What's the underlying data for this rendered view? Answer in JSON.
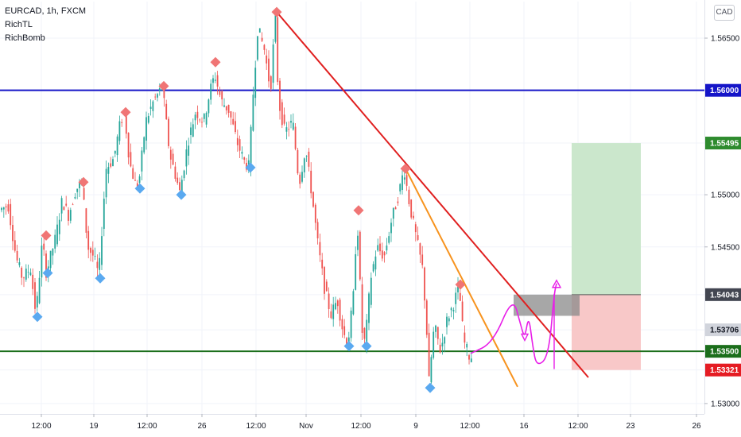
{
  "legend": {
    "symbol_line": "EURCAD, 1h, FXCM",
    "indicators": [
      "RichTL",
      "RichBomb"
    ]
  },
  "currency_badge": "CAD",
  "colors": {
    "up": "#26a69a",
    "down": "#ef5350",
    "resistance": "#1515c8",
    "support": "#1b6e1b",
    "trend_red": "#e01f1f",
    "trend_orange": "#f7931e",
    "path": "#e81ee8",
    "profit_zone": "#c8e6c9",
    "loss_zone": "#f8c5c5",
    "entry_box": "#8a8a8a",
    "marker_top": "#f07575",
    "marker_bottom": "#5aa9f0"
  },
  "chart_data": {
    "type": "candlestick",
    "symbol": "EURCAD",
    "timeframe": "1h",
    "source": "FXCM",
    "ylim": [
      1.529,
      1.5685
    ],
    "xlim": [
      0,
      930
    ],
    "price_ticks": [
      {
        "label": "1.56500",
        "value": 1.565
      },
      {
        "label": "1.55000",
        "value": 1.55
      },
      {
        "label": "1.54500",
        "value": 1.545
      },
      {
        "label": "1.53000",
        "value": 1.53
      }
    ],
    "price_labels": [
      {
        "label": "1.56000",
        "value": 1.56,
        "bg": "#1515c8",
        "fg": "#ffffff"
      },
      {
        "label": "1.55495",
        "value": 1.55495,
        "bg": "#2e8b2e",
        "fg": "#ffffff"
      },
      {
        "label": "1.54043",
        "value": 1.54043,
        "bg": "#434651",
        "fg": "#ffffff"
      },
      {
        "label": "1.53706",
        "value": 1.53706,
        "bg": "#d1d4dc",
        "fg": "#131722"
      },
      {
        "label": "1.53500",
        "value": 1.535,
        "bg": "#1b6e1b",
        "fg": "#ffffff"
      },
      {
        "label": "1.53321",
        "value": 1.53321,
        "bg": "#e51c23",
        "fg": "#ffffff"
      }
    ],
    "time_ticks": [
      {
        "label": "12:00",
        "x": 52
      },
      {
        "label": "19",
        "x": 118
      },
      {
        "label": "12:00",
        "x": 185
      },
      {
        "label": "26",
        "x": 254
      },
      {
        "label": "12:00",
        "x": 322
      },
      {
        "label": "Nov",
        "x": 385
      },
      {
        "label": "12:00",
        "x": 454
      },
      {
        "label": "9",
        "x": 523
      },
      {
        "label": "12:00",
        "x": 591
      },
      {
        "label": "16",
        "x": 659
      },
      {
        "label": "12:00",
        "x": 727
      },
      {
        "label": "23",
        "x": 793
      },
      {
        "label": "26",
        "x": 876
      }
    ],
    "horizontal_lines": [
      {
        "name": "resistance",
        "value": 1.56
      },
      {
        "name": "support",
        "value": 1.535
      }
    ],
    "trend_lines": [
      {
        "name": "main-downtrend",
        "points": [
          [
            348,
            1.5675
          ],
          [
            740,
            1.5325
          ]
        ]
      },
      {
        "name": "steep-downtrend",
        "points": [
          [
            510,
            1.5525
          ],
          [
            651,
            1.5316
          ]
        ]
      }
    ],
    "position": {
      "x_start": 719,
      "x_end": 806,
      "target": 1.55495,
      "entry": 1.54043,
      "stop": 1.53321,
      "box": {
        "x_start": 646,
        "x_end": 729,
        "top": 1.54043,
        "bottom": 1.5384
      }
    },
    "projected_path": [
      [
        592,
        1.5348
      ],
      [
        620,
        1.5358
      ],
      [
        645,
        1.5403
      ],
      [
        655,
        1.5375
      ],
      [
        660,
        1.5362
      ],
      [
        665,
        1.5385
      ],
      [
        670,
        1.5355
      ],
      [
        675,
        1.5335
      ],
      [
        690,
        1.5345
      ],
      [
        697,
        1.5405
      ],
      [
        700,
        1.5415
      ]
    ],
    "markers_top": [
      [
        58,
        1.5461
      ],
      [
        105,
        1.5512
      ],
      [
        158,
        1.5579
      ],
      [
        206,
        1.5604
      ],
      [
        271,
        1.5627
      ],
      [
        348,
        1.5675
      ],
      [
        451,
        1.5485
      ],
      [
        510,
        1.5525
      ],
      [
        579,
        1.5414
      ]
    ],
    "markers_bottom": [
      [
        47,
        1.5383
      ],
      [
        60,
        1.5425
      ],
      [
        126,
        1.542
      ],
      [
        176,
        1.5506
      ],
      [
        228,
        1.55
      ],
      [
        315,
        1.5526
      ],
      [
        439,
        1.5355
      ],
      [
        461,
        1.5355
      ],
      [
        541,
        1.5315
      ]
    ],
    "price_path": [
      [
        0,
        1.5485
      ],
      [
        12,
        1.549
      ],
      [
        22,
        1.544
      ],
      [
        30,
        1.542
      ],
      [
        40,
        1.543
      ],
      [
        47,
        1.5385
      ],
      [
        55,
        1.5455
      ],
      [
        60,
        1.5425
      ],
      [
        72,
        1.546
      ],
      [
        80,
        1.5495
      ],
      [
        88,
        1.548
      ],
      [
        97,
        1.5505
      ],
      [
        105,
        1.5512
      ],
      [
        112,
        1.545
      ],
      [
        120,
        1.544
      ],
      [
        126,
        1.5422
      ],
      [
        135,
        1.5525
      ],
      [
        145,
        1.5535
      ],
      [
        152,
        1.5565
      ],
      [
        158,
        1.558
      ],
      [
        165,
        1.553
      ],
      [
        172,
        1.551
      ],
      [
        176,
        1.5508
      ],
      [
        185,
        1.557
      ],
      [
        195,
        1.559
      ],
      [
        206,
        1.5603
      ],
      [
        215,
        1.554
      ],
      [
        222,
        1.552
      ],
      [
        228,
        1.5502
      ],
      [
        238,
        1.555
      ],
      [
        248,
        1.558
      ],
      [
        258,
        1.557
      ],
      [
        266,
        1.56
      ],
      [
        272,
        1.5615
      ],
      [
        280,
        1.559
      ],
      [
        290,
        1.558
      ],
      [
        300,
        1.555
      ],
      [
        310,
        1.553
      ],
      [
        315,
        1.5527
      ],
      [
        320,
        1.5595
      ],
      [
        326,
        1.566
      ],
      [
        334,
        1.564
      ],
      [
        342,
        1.56
      ],
      [
        348,
        1.5672
      ],
      [
        352,
        1.559
      ],
      [
        360,
        1.556
      ],
      [
        370,
        1.557
      ],
      [
        378,
        1.551
      ],
      [
        386,
        1.5545
      ],
      [
        394,
        1.55
      ],
      [
        402,
        1.545
      ],
      [
        410,
        1.541
      ],
      [
        418,
        1.5385
      ],
      [
        426,
        1.54
      ],
      [
        433,
        1.537
      ],
      [
        439,
        1.5356
      ],
      [
        446,
        1.54
      ],
      [
        451,
        1.548
      ],
      [
        457,
        1.537
      ],
      [
        461,
        1.5357
      ],
      [
        468,
        1.542
      ],
      [
        476,
        1.545
      ],
      [
        485,
        1.544
      ],
      [
        494,
        1.5475
      ],
      [
        503,
        1.55
      ],
      [
        510,
        1.5525
      ],
      [
        517,
        1.549
      ],
      [
        525,
        1.546
      ],
      [
        533,
        1.543
      ],
      [
        538,
        1.538
      ],
      [
        541,
        1.5318
      ],
      [
        548,
        1.5375
      ],
      [
        556,
        1.535
      ],
      [
        564,
        1.538
      ],
      [
        572,
        1.5395
      ],
      [
        579,
        1.5412
      ],
      [
        585,
        1.536
      ],
      [
        592,
        1.5345
      ]
    ]
  }
}
